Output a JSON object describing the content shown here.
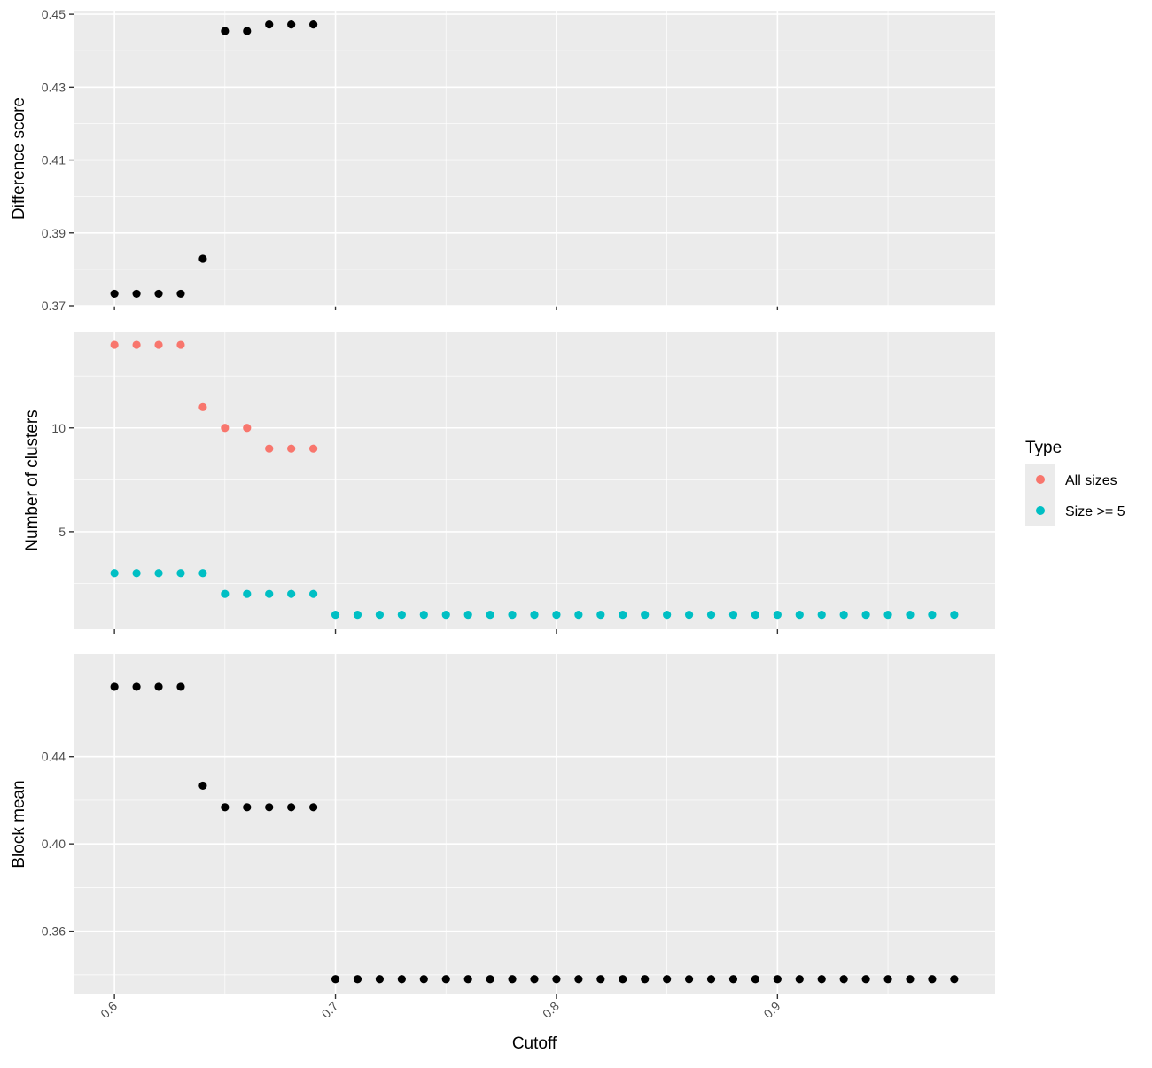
{
  "colors": {
    "panel_bg": "#EBEBEB",
    "grid_major": "#FFFFFF",
    "point_default": "#000000",
    "all_sizes": "#F8766D",
    "size_ge_5": "#00BFC4",
    "tick_text": "#4D4D4D",
    "tick_mark": "#333333"
  },
  "chart_data": [
    {
      "type": "scatter",
      "panel": "top",
      "ylabel": "Difference score",
      "xlim": [
        0.5815,
        0.9985
      ],
      "ylim": [
        0.37,
        0.451
      ],
      "x_ticks": [
        0.6,
        0.7,
        0.8,
        0.9
      ],
      "y_ticks": [
        0.37,
        0.39,
        0.41,
        0.43,
        0.45
      ],
      "y_tick_labels": [
        "0.37",
        "0.39",
        "0.41",
        "0.43",
        "0.45"
      ],
      "y_minor": [
        0.38,
        0.4,
        0.42,
        0.44
      ],
      "series": [
        {
          "x": [
            0.6,
            0.61,
            0.62,
            0.63,
            0.64,
            0.65,
            0.66,
            0.67,
            0.68,
            0.69
          ],
          "y": [
            0.3733,
            0.3733,
            0.3733,
            0.3733,
            0.3829,
            0.4454,
            0.4454,
            0.4472,
            0.4472,
            0.4472
          ]
        }
      ]
    },
    {
      "type": "scatter",
      "panel": "middle",
      "ylabel": "Number of clusters",
      "xlim": [
        0.5815,
        0.9985
      ],
      "ylim": [
        0.3,
        14.6
      ],
      "x_ticks": [
        0.6,
        0.7,
        0.8,
        0.9
      ],
      "y_ticks": [
        5,
        10
      ],
      "y_tick_labels": [
        "5",
        "10"
      ],
      "y_minor": [
        2.5,
        7.5,
        12.5
      ],
      "series": [
        {
          "name": "All sizes",
          "color_key": "all_sizes",
          "x": [
            0.6,
            0.61,
            0.62,
            0.63,
            0.64,
            0.65,
            0.66,
            0.67,
            0.68,
            0.69
          ],
          "y": [
            14,
            14,
            14,
            14,
            11,
            10,
            10,
            9,
            9,
            9
          ]
        },
        {
          "name": "Size >= 5",
          "color_key": "size_ge_5",
          "x": [
            0.6,
            0.61,
            0.62,
            0.63,
            0.64,
            0.65,
            0.66,
            0.67,
            0.68,
            0.69,
            0.7,
            0.71,
            0.72,
            0.73,
            0.74,
            0.75,
            0.76,
            0.77,
            0.78,
            0.79,
            0.8,
            0.81,
            0.82,
            0.83,
            0.84,
            0.85,
            0.86,
            0.87,
            0.88,
            0.89,
            0.9,
            0.91,
            0.92,
            0.93,
            0.94,
            0.95,
            0.96,
            0.97,
            0.98
          ],
          "y": [
            3,
            3,
            3,
            3,
            3,
            2,
            2,
            2,
            2,
            2,
            1,
            1,
            1,
            1,
            1,
            1,
            1,
            1,
            1,
            1,
            1,
            1,
            1,
            1,
            1,
            1,
            1,
            1,
            1,
            1,
            1,
            1,
            1,
            1,
            1,
            1,
            1,
            1,
            1
          ]
        }
      ]
    },
    {
      "type": "scatter",
      "panel": "bottom",
      "ylabel": "Block mean",
      "xlabel": "Cutoff",
      "xlim": [
        0.5815,
        0.9985
      ],
      "ylim": [
        0.331,
        0.487
      ],
      "x_ticks": [
        0.6,
        0.7,
        0.8,
        0.9
      ],
      "x_tick_labels": [
        "0.6",
        "0.7",
        "0.8",
        "0.9"
      ],
      "y_ticks": [
        0.36,
        0.4,
        0.44
      ],
      "y_tick_labels": [
        "0.36",
        "0.40",
        "0.44"
      ],
      "y_minor": [
        0.34,
        0.38,
        0.42,
        0.46
      ],
      "series": [
        {
          "x": [
            0.6,
            0.61,
            0.62,
            0.63,
            0.64,
            0.65,
            0.66,
            0.67,
            0.68,
            0.69,
            0.7,
            0.71,
            0.72,
            0.73,
            0.74,
            0.75,
            0.76,
            0.77,
            0.78,
            0.79,
            0.8,
            0.81,
            0.82,
            0.83,
            0.84,
            0.85,
            0.86,
            0.87,
            0.88,
            0.89,
            0.9,
            0.91,
            0.92,
            0.93,
            0.94,
            0.95,
            0.96,
            0.97,
            0.98
          ],
          "y": [
            0.472,
            0.472,
            0.472,
            0.472,
            0.4267,
            0.4168,
            0.4168,
            0.4168,
            0.4168,
            0.4168,
            0.338,
            0.338,
            0.338,
            0.338,
            0.338,
            0.338,
            0.338,
            0.338,
            0.338,
            0.338,
            0.338,
            0.338,
            0.338,
            0.338,
            0.338,
            0.338,
            0.338,
            0.338,
            0.338,
            0.338,
            0.338,
            0.338,
            0.338,
            0.338,
            0.338,
            0.338,
            0.338,
            0.338,
            0.338
          ]
        }
      ]
    }
  ],
  "legend": {
    "title": "Type",
    "position": "right",
    "items": [
      {
        "label": "All sizes",
        "color_key": "all_sizes"
      },
      {
        "label": "Size >= 5",
        "color_key": "size_ge_5"
      }
    ]
  }
}
